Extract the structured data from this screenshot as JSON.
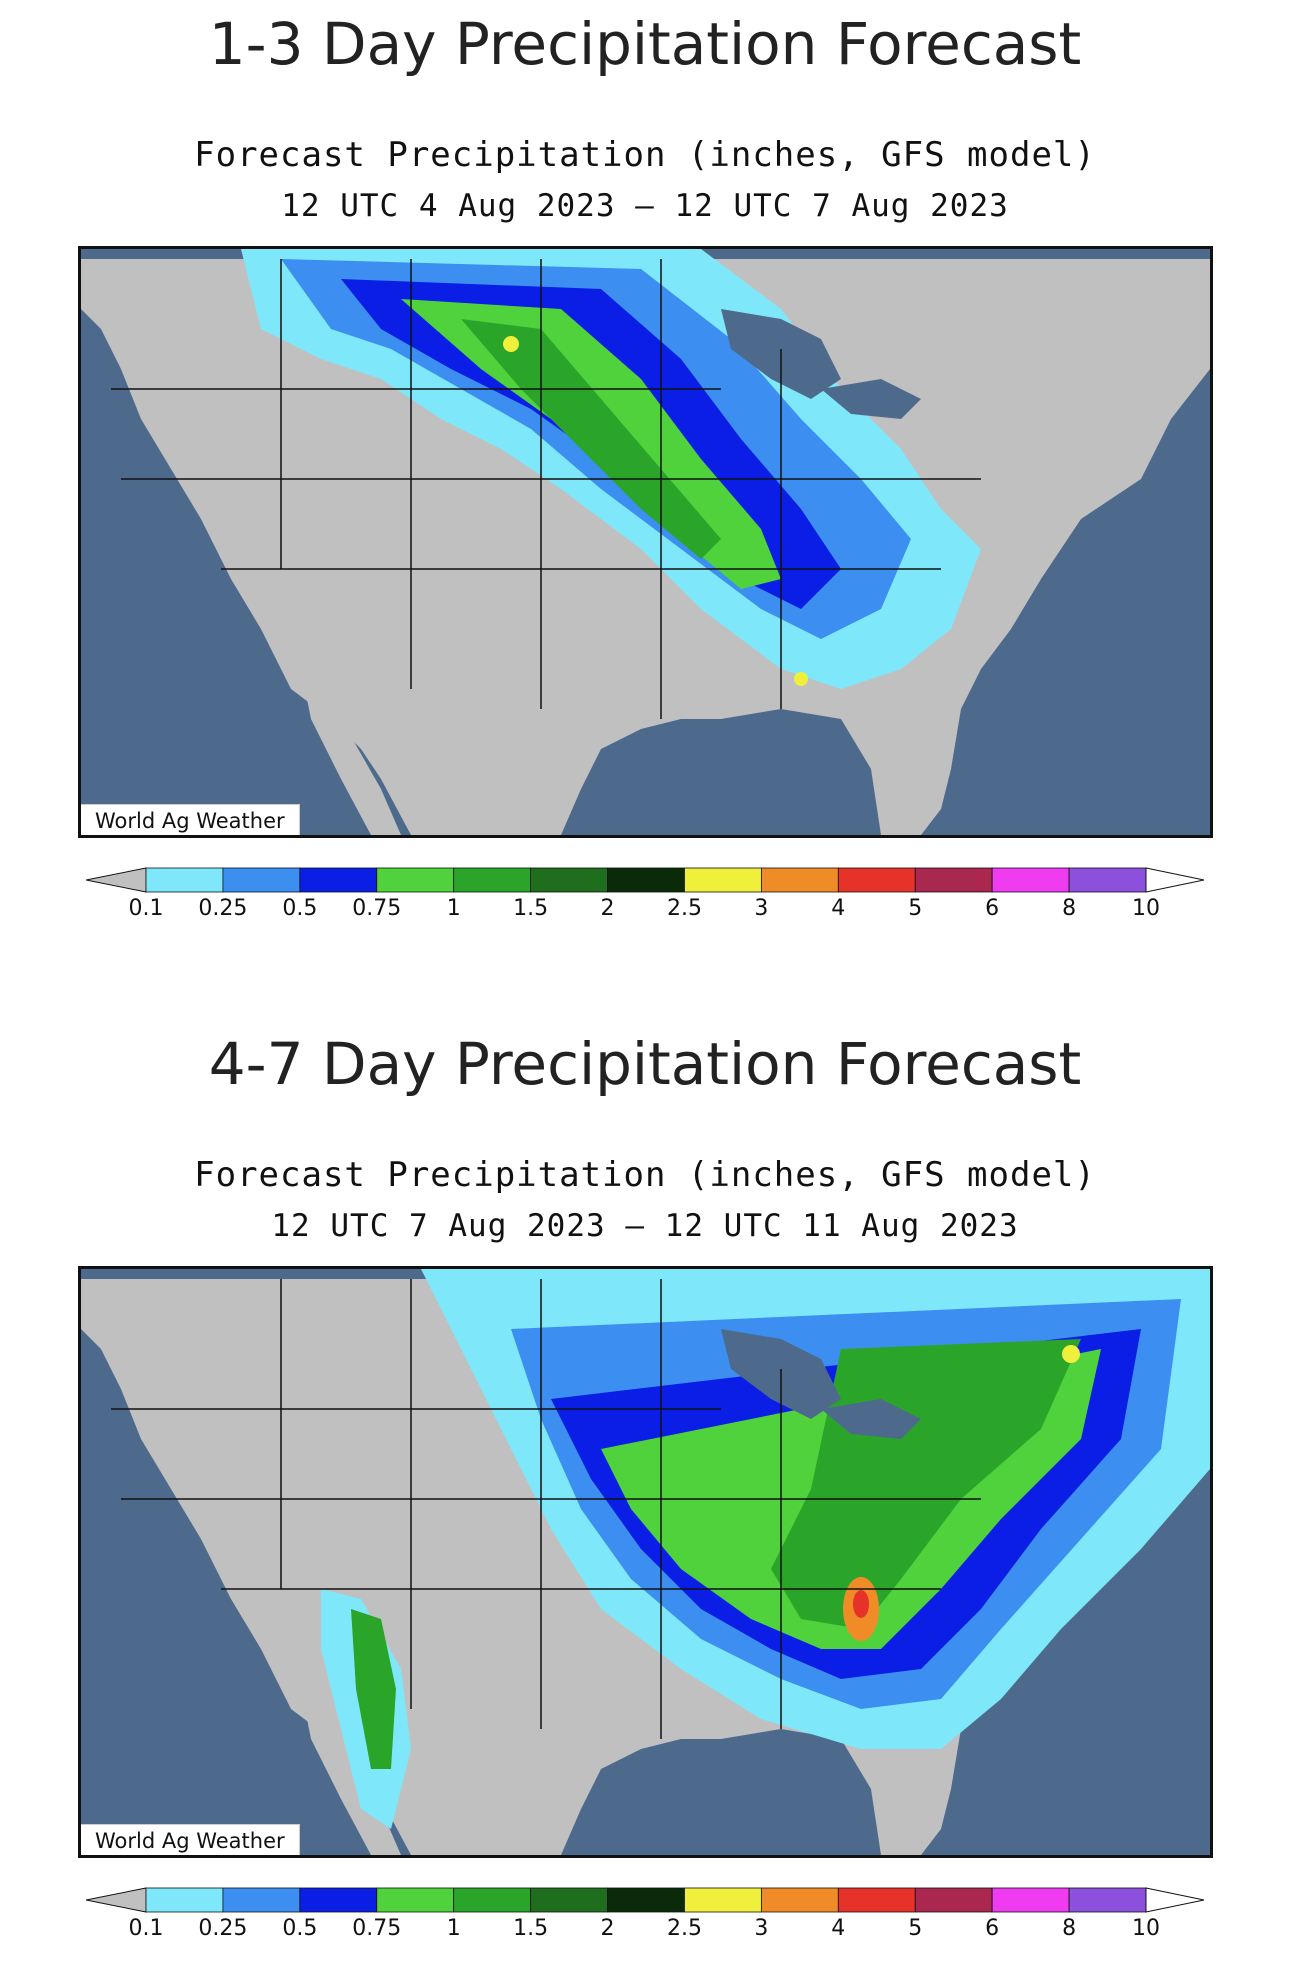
{
  "panels": [
    {
      "heading": "1-3 Day Precipitation Forecast",
      "subtitle": "Forecast Precipitation (inches, GFS model)",
      "period": "12 UTC 4 Aug 2023 – 12 UTC 7 Aug 2023",
      "credit": "World Ag Weather"
    },
    {
      "heading": "4-7 Day Precipitation Forecast",
      "subtitle": "Forecast Precipitation (inches, GFS model)",
      "period": "12 UTC 7 Aug 2023 – 12 UTC 11 Aug 2023",
      "credit": "World Ag Weather"
    }
  ],
  "legend": {
    "ticks": [
      "0.1",
      "0.25",
      "0.5",
      "0.75",
      "1",
      "1.5",
      "2",
      "2.5",
      "3",
      "4",
      "5",
      "6",
      "8",
      "10"
    ],
    "colors": [
      "#c0c0c0",
      "#7ee8fa",
      "#3c8ff0",
      "#0a1ee6",
      "#50d23c",
      "#2aa52a",
      "#1e6e1e",
      "#0a2a0a",
      "#f0f03c",
      "#f08c28",
      "#e63228",
      "#aa2850",
      "#f03cf0",
      "#8c50dc",
      "#ffffff"
    ]
  },
  "map_colors": {
    "ocean": "#4d6a8c",
    "land": "#c0c0c0",
    "border": "#111111"
  }
}
